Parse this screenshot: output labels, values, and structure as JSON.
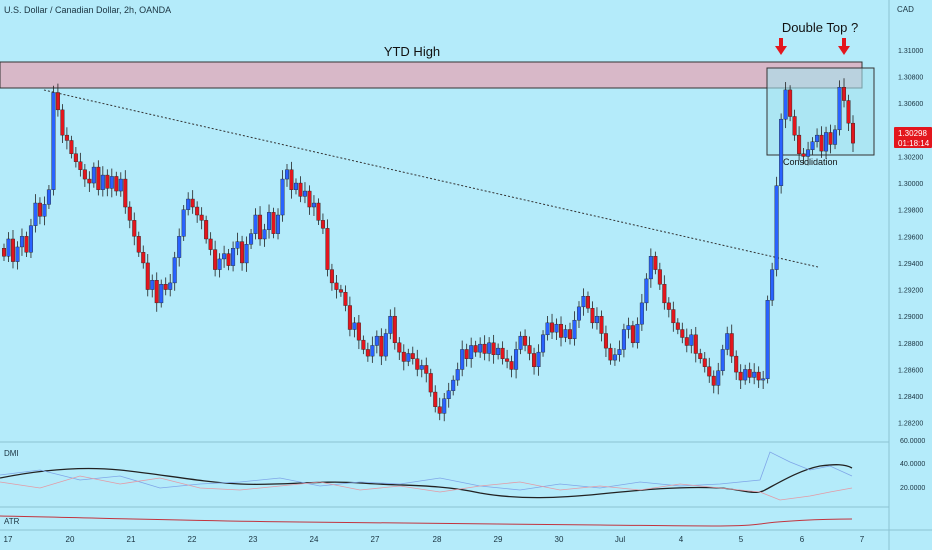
{
  "header": {
    "title": "U.S. Dollar / Canadian Dollar, 2h, OANDA",
    "currency": "CAD"
  },
  "colors": {
    "background": "#b4ebfa",
    "up": "#2962ff",
    "down": "#e3161d",
    "zone_fill": "#d8b8c8",
    "arrow": "#e3161d"
  },
  "annotations": {
    "ytd_high": "YTD High",
    "double_top": "Double Top ?",
    "consolidation": "Consolidation"
  },
  "price_badge": {
    "price": "1.30298",
    "countdown": "01:18:14"
  },
  "chart_data": {
    "type": "candlestick",
    "interval": "2h",
    "y_axis": {
      "range": [
        1.281,
        1.313
      ],
      "ticks": [
        "1.31000",
        "1.30800",
        "1.30600",
        "1.30400",
        "1.30200",
        "1.30000",
        "1.29800",
        "1.29600",
        "1.29400",
        "1.29200",
        "1.29000",
        "1.28800",
        "1.28600",
        "1.28400",
        "1.28200"
      ]
    },
    "x_axis": {
      "ticks": [
        "17",
        "20",
        "21",
        "22",
        "23",
        "24",
        "27",
        "28",
        "29",
        "30",
        "Jul",
        "4",
        "5",
        "6",
        "7"
      ]
    },
    "resistance_zone": [
      1.306,
      1.3078
    ],
    "consolidation_box": [
      1.3015,
      1.3077
    ],
    "trendline": [
      [
        1.3062,
        1.2937
      ]
    ],
    "candles_close": [
      1.2945,
      1.2958,
      1.2941,
      1.2952,
      1.296,
      1.2948,
      1.2968,
      1.2985,
      1.2975,
      1.2984,
      1.2995,
      1.3068,
      1.3055,
      1.3036,
      1.3032,
      1.3022,
      1.3016,
      1.301,
      1.3003,
      1.3,
      1.3012,
      1.2995,
      1.3006,
      1.2996,
      1.3005,
      1.2994,
      1.3003,
      1.2982,
      1.2972,
      1.296,
      1.2948,
      1.294,
      1.292,
      1.2927,
      1.291,
      1.2924,
      1.292,
      1.2925,
      1.2944,
      1.296,
      1.298,
      1.2988,
      1.2982,
      1.2976,
      1.2972,
      1.2958,
      1.295,
      1.2935,
      1.2943,
      1.2947,
      1.2938,
      1.2951,
      1.2956,
      1.294,
      1.2954,
      1.2962,
      1.2976,
      1.2958,
      1.2965,
      1.2978,
      1.2962,
      1.2976,
      1.3003,
      1.301,
      1.2995,
      1.3,
      1.299,
      1.2994,
      1.2982,
      1.2985,
      1.2972,
      1.2966,
      1.2935,
      1.2925,
      1.292,
      1.2918,
      1.2908,
      1.289,
      1.2895,
      1.2882,
      1.2875,
      1.287,
      1.2878,
      1.2885,
      1.287,
      1.2887,
      1.29,
      1.288,
      1.2873,
      1.2866,
      1.2872,
      1.2868,
      1.286,
      1.2863,
      1.2857,
      1.2843,
      1.2832,
      1.2827,
      1.2838,
      1.2844,
      1.2852,
      1.286,
      1.2875,
      1.2868,
      1.2878,
      1.2873,
      1.2879,
      1.2872,
      1.288,
      1.2871,
      1.2876,
      1.2868,
      1.2866,
      1.286,
      1.2875,
      1.2885,
      1.2878,
      1.2872,
      1.2862,
      1.2873,
      1.2886,
      1.2895,
      1.2888,
      1.2894,
      1.2884,
      1.289,
      1.2883,
      1.2897,
      1.2907,
      1.2915,
      1.2906,
      1.2895,
      1.29,
      1.2887,
      1.2876,
      1.2867,
      1.2871,
      1.2875,
      1.289,
      1.2893,
      1.288,
      1.2894,
      1.291,
      1.2928,
      1.2945,
      1.2935,
      1.2924,
      1.291,
      1.2905,
      1.2895,
      1.289,
      1.2884,
      1.2878,
      1.2886,
      1.2872,
      1.2868,
      1.2862,
      1.2855,
      1.2848,
      1.2859,
      1.2875,
      1.2887,
      1.287,
      1.2858,
      1.2852,
      1.286,
      1.2854,
      1.2858,
      1.2852,
      1.2853,
      1.2912,
      1.2935,
      1.2998,
      1.3048,
      1.307,
      1.305,
      1.3036,
      1.3022,
      1.302,
      1.3025,
      1.3031,
      1.3036,
      1.3024,
      1.3038,
      1.3029,
      1.304,
      1.3072,
      1.3062,
      1.3045,
      1.303
    ],
    "dmi": {
      "y_ticks": [
        "60.0000",
        "40.0000",
        "20.0000"
      ]
    },
    "atr": {}
  },
  "footer": {
    "dmi_label": "DMI",
    "atr_label": "ATR"
  }
}
